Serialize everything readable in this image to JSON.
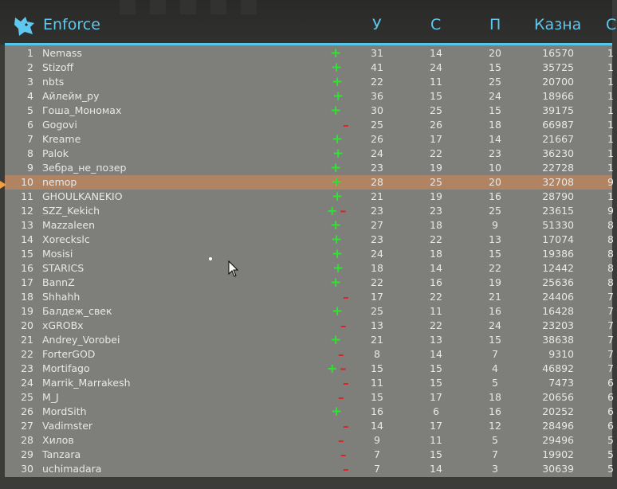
{
  "header": {
    "title": "Enforce",
    "columns": [
      "У",
      "С",
      "П",
      "Казна",
      "С"
    ]
  },
  "colors": {
    "accent": "#55c6ea",
    "text": "#e8e8e8",
    "highlight": "#b08462",
    "plus": "#33e033",
    "minus": "#e02020"
  },
  "rows": [
    {
      "rank": "1",
      "name": "Nemass",
      "u": "31",
      "s": "14",
      "p": "20",
      "kazna": "16570",
      "extra": "1",
      "mark": "plus"
    },
    {
      "rank": "2",
      "name": "Stizoff",
      "u": "41",
      "s": "24",
      "p": "15",
      "kazna": "35725",
      "extra": "1",
      "mark": "plus"
    },
    {
      "rank": "3",
      "name": "nbts",
      "u": "22",
      "s": "11",
      "p": "25",
      "kazna": "20700",
      "extra": "1",
      "mark": "plus"
    },
    {
      "rank": "4",
      "name": "Айлейм_ру",
      "u": "36",
      "s": "15",
      "p": "24",
      "kazna": "18966",
      "extra": "1",
      "mark": "plus"
    },
    {
      "rank": "5",
      "name": "Гоша_Мономах",
      "u": "30",
      "s": "25",
      "p": "15",
      "kazna": "39175",
      "extra": "1",
      "mark": "plus"
    },
    {
      "rank": "6",
      "name": "Gogovi",
      "u": "25",
      "s": "26",
      "p": "18",
      "kazna": "66987",
      "extra": "1",
      "mark": "minus"
    },
    {
      "rank": "7",
      "name": "Kreame",
      "u": "26",
      "s": "17",
      "p": "14",
      "kazna": "21667",
      "extra": "1",
      "mark": "plus"
    },
    {
      "rank": "8",
      "name": "Palok",
      "u": "24",
      "s": "22",
      "p": "23",
      "kazna": "36230",
      "extra": "1",
      "mark": "plus"
    },
    {
      "rank": "9",
      "name": "Зебра_не_позер",
      "u": "23",
      "s": "19",
      "p": "10",
      "kazna": "22728",
      "extra": "1",
      "mark": "plus"
    },
    {
      "rank": "10",
      "name": "nemop",
      "u": "28",
      "s": "25",
      "p": "20",
      "kazna": "32708",
      "extra": "9",
      "mark": "plus",
      "highlight": true
    },
    {
      "rank": "11",
      "name": "GHOULKANEKIO",
      "u": "21",
      "s": "19",
      "p": "16",
      "kazna": "28790",
      "extra": "1",
      "mark": "plus"
    },
    {
      "rank": "12",
      "name": "SZZ_Kekich",
      "u": "23",
      "s": "23",
      "p": "25",
      "kazna": "23615",
      "extra": "9",
      "mark": "plusminus"
    },
    {
      "rank": "13",
      "name": "Mazzaleen",
      "u": "27",
      "s": "18",
      "p": "9",
      "kazna": "51330",
      "extra": "8",
      "mark": "plus"
    },
    {
      "rank": "14",
      "name": "Xoreckslc",
      "u": "23",
      "s": "22",
      "p": "13",
      "kazna": "17074",
      "extra": "8",
      "mark": "plus"
    },
    {
      "rank": "15",
      "name": "Mosisi",
      "u": "24",
      "s": "18",
      "p": "15",
      "kazna": "19386",
      "extra": "8",
      "mark": "plus"
    },
    {
      "rank": "16",
      "name": "STARICS",
      "u": "18",
      "s": "14",
      "p": "22",
      "kazna": "12442",
      "extra": "8",
      "mark": "plus"
    },
    {
      "rank": "17",
      "name": "BannZ",
      "u": "22",
      "s": "16",
      "p": "19",
      "kazna": "25636",
      "extra": "8",
      "mark": "plus"
    },
    {
      "rank": "18",
      "name": "Shhahh",
      "u": "17",
      "s": "22",
      "p": "21",
      "kazna": "24406",
      "extra": "7",
      "mark": "minus"
    },
    {
      "rank": "19",
      "name": "Балдеж_свек",
      "u": "25",
      "s": "11",
      "p": "16",
      "kazna": "16428",
      "extra": "7",
      "mark": "plus"
    },
    {
      "rank": "20",
      "name": "xGROBx",
      "u": "13",
      "s": "22",
      "p": "24",
      "kazna": "23203",
      "extra": "7",
      "mark": "minus"
    },
    {
      "rank": "21",
      "name": "Andrey_Vorobei",
      "u": "21",
      "s": "13",
      "p": "15",
      "kazna": "38638",
      "extra": "7",
      "mark": "plus"
    },
    {
      "rank": "22",
      "name": "ForterGOD",
      "u": "8",
      "s": "14",
      "p": "7",
      "kazna": "9310",
      "extra": "7",
      "mark": "minus"
    },
    {
      "rank": "23",
      "name": "Mortifago",
      "u": "15",
      "s": "15",
      "p": "4",
      "kazna": "46892",
      "extra": "7",
      "mark": "plusminus"
    },
    {
      "rank": "24",
      "name": "Marrik_Marrakesh",
      "u": "11",
      "s": "15",
      "p": "5",
      "kazna": "7473",
      "extra": "6",
      "mark": "minus"
    },
    {
      "rank": "25",
      "name": "M_J",
      "u": "15",
      "s": "17",
      "p": "18",
      "kazna": "20656",
      "extra": "6",
      "mark": "minus"
    },
    {
      "rank": "26",
      "name": "MordSith",
      "u": "16",
      "s": "6",
      "p": "16",
      "kazna": "20252",
      "extra": "6",
      "mark": "plus"
    },
    {
      "rank": "27",
      "name": "Vadimster",
      "u": "14",
      "s": "17",
      "p": "12",
      "kazna": "28496",
      "extra": "6",
      "mark": "minus"
    },
    {
      "rank": "28",
      "name": "Хилов",
      "u": "9",
      "s": "11",
      "p": "5",
      "kazna": "29496",
      "extra": "5",
      "mark": "minus"
    },
    {
      "rank": "29",
      "name": "Tanzara",
      "u": "7",
      "s": "15",
      "p": "7",
      "kazna": "19902",
      "extra": "5",
      "mark": "minus"
    },
    {
      "rank": "30",
      "name": "uchimadara",
      "u": "7",
      "s": "14",
      "p": "3",
      "kazna": "30639",
      "extra": "5",
      "mark": "minus"
    }
  ]
}
